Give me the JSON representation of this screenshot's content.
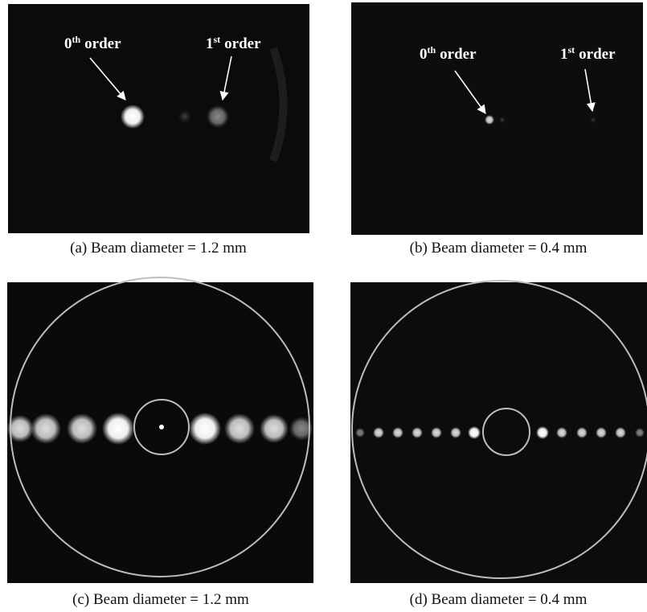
{
  "panels": [
    {
      "caption": "(a) Beam diameter = 1.2 mm",
      "annotations": [
        {
          "number": "0",
          "suffix": "th",
          "word": "order"
        },
        {
          "number": "1",
          "suffix": "st",
          "word": "order"
        }
      ]
    },
    {
      "caption": "(b) Beam diameter = 0.4 mm",
      "annotations": [
        {
          "number": "0",
          "suffix": "th",
          "word": "order"
        },
        {
          "number": "1",
          "suffix": "st",
          "word": "order"
        }
      ]
    },
    {
      "caption": "(c) Beam diameter = 1.2 mm"
    },
    {
      "caption": "(d) Beam diameter = 0.4 mm"
    }
  ]
}
